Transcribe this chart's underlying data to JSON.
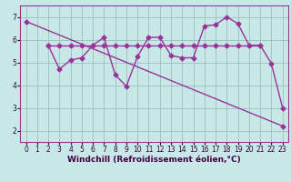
{
  "xlabel": "Windchill (Refroidissement éolien,°C)",
  "bg_color": "#c8e8e8",
  "line_color": "#993399",
  "grid_color": "#9bbfbf",
  "xlim": [
    -0.5,
    23.5
  ],
  "ylim": [
    1.5,
    7.5
  ],
  "xticks": [
    0,
    1,
    2,
    3,
    4,
    5,
    6,
    7,
    8,
    9,
    10,
    11,
    12,
    13,
    14,
    15,
    16,
    17,
    18,
    19,
    20,
    21,
    22,
    23
  ],
  "yticks": [
    2,
    3,
    4,
    5,
    6,
    7
  ],
  "line1_x": [
    0,
    23
  ],
  "line1_y": [
    6.8,
    2.2
  ],
  "line2_x": [
    2,
    3,
    4,
    5,
    6,
    7,
    8,
    9,
    10,
    11,
    12,
    13,
    14,
    15,
    16,
    17,
    18,
    19,
    20,
    21
  ],
  "line2_y": [
    5.75,
    5.75,
    5.75,
    5.75,
    5.75,
    5.75,
    5.75,
    5.75,
    5.75,
    5.75,
    5.75,
    5.75,
    5.75,
    5.75,
    5.75,
    5.75,
    5.75,
    5.75,
    5.75,
    5.75
  ],
  "line3_x": [
    2,
    3,
    4,
    5,
    6,
    7,
    8,
    9,
    10,
    11,
    12,
    13,
    14,
    15,
    16,
    17,
    18,
    19,
    20,
    21,
    22,
    23
  ],
  "line3_y": [
    5.75,
    4.7,
    5.1,
    5.2,
    5.75,
    6.1,
    4.45,
    3.95,
    5.25,
    6.1,
    6.1,
    5.3,
    5.2,
    5.2,
    6.6,
    6.65,
    7.0,
    6.7,
    5.75,
    5.75,
    4.95,
    3.0
  ],
  "marker_size": 2.5,
  "line_width": 1.0,
  "xlabel_fontsize": 6.5,
  "tick_fontsize": 5.5,
  "xlabel_color": "#440044",
  "tick_color": "#330033",
  "spine_color": "#993399"
}
